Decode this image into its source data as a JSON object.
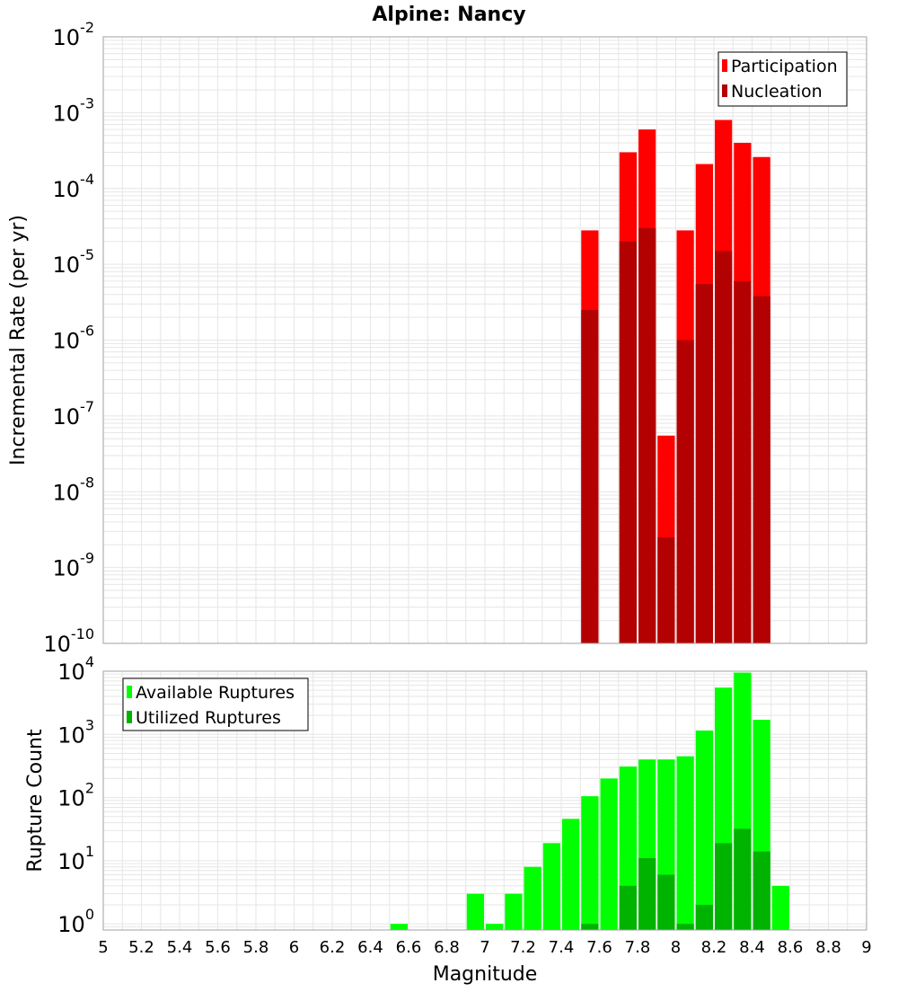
{
  "title": "Alpine: Nancy",
  "xlabel": "Magnitude",
  "chart_data": [
    {
      "type": "bar",
      "scale": "log",
      "ylabel": "Incremental Rate (per yr)",
      "xlim": [
        5,
        9
      ],
      "ylim": [
        1e-10,
        0.01
      ],
      "ytick_labels": [
        {
          "base": "10",
          "exp": "-10",
          "value": 1e-10
        },
        {
          "base": "10",
          "exp": "-9",
          "value": 1e-09
        },
        {
          "base": "10",
          "exp": "-8",
          "value": 1e-08
        },
        {
          "base": "10",
          "exp": "-7",
          "value": 1e-07
        },
        {
          "base": "10",
          "exp": "-6",
          "value": 1e-06
        },
        {
          "base": "10",
          "exp": "-5",
          "value": 1e-05
        },
        {
          "base": "10",
          "exp": "-4",
          "value": 0.0001
        },
        {
          "base": "10",
          "exp": "-3",
          "value": 0.001
        },
        {
          "base": "10",
          "exp": "-2",
          "value": 0.01
        }
      ],
      "legend": "top-right",
      "grid": true,
      "x": [
        7.55,
        7.65,
        7.75,
        7.85,
        7.95,
        8.05,
        8.15,
        8.25,
        8.35,
        8.45
      ],
      "series": [
        {
          "name": "Participation",
          "color": "#ff0000",
          "values": [
            2.8e-05,
            0,
            0.0003,
            0.0006,
            5.5e-08,
            2.8e-05,
            0.00021,
            0.0008,
            0.0004,
            0.00026
          ]
        },
        {
          "name": "Nucleation",
          "color": "#b30000",
          "values": [
            2.5e-06,
            0,
            2e-05,
            3e-05,
            2.5e-09,
            1e-06,
            5.5e-06,
            1.5e-05,
            6e-06,
            3.8e-06
          ]
        }
      ]
    },
    {
      "type": "bar",
      "scale": "log",
      "ylabel": "Rupture Count",
      "xlim": [
        5,
        9
      ],
      "ylim": [
        0.8,
        10000
      ],
      "ytick_labels": [
        {
          "base": "10",
          "exp": "0",
          "value": 1
        },
        {
          "base": "10",
          "exp": "1",
          "value": 10
        },
        {
          "base": "10",
          "exp": "2",
          "value": 100
        },
        {
          "base": "10",
          "exp": "3",
          "value": 1000
        },
        {
          "base": "10",
          "exp": "4",
          "value": 10000
        }
      ],
      "legend": "top-left",
      "grid": true,
      "x": [
        6.55,
        6.95,
        7.05,
        7.15,
        7.25,
        7.35,
        7.45,
        7.55,
        7.65,
        7.75,
        7.85,
        7.95,
        8.05,
        8.15,
        8.25,
        8.35,
        8.45,
        8.55
      ],
      "series": [
        {
          "name": "Available Ruptures",
          "color": "#00ff00",
          "values": [
            1,
            3,
            1,
            3,
            8,
            19,
            46,
            105,
            200,
            310,
            400,
            400,
            450,
            1150,
            5500,
            9500,
            1700,
            4
          ]
        },
        {
          "name": "Utilized Ruptures",
          "color": "#00b300",
          "values": [
            0,
            0,
            0,
            0,
            0,
            0,
            0,
            1,
            0,
            4,
            11,
            6,
            1,
            2,
            19,
            32,
            14,
            0
          ]
        }
      ]
    }
  ],
  "xticks": [
    "5",
    "5.2",
    "5.4",
    "5.6",
    "5.8",
    "6",
    "6.2",
    "6.4",
    "6.6",
    "6.8",
    "7",
    "7.2",
    "7.4",
    "7.6",
    "7.8",
    "8",
    "8.2",
    "8.4",
    "8.6",
    "8.8",
    "9"
  ],
  "colors": {
    "axis": "#a0a0a0",
    "grid": "#e6e6e6"
  }
}
